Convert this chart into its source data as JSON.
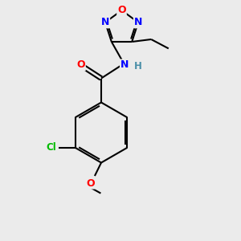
{
  "background_color": "#ebebeb",
  "bond_color": "#000000",
  "atom_colors": {
    "O": "#ff0000",
    "N": "#0000ff",
    "Cl": "#00bb00",
    "C": "#000000",
    "H": "#4a8fa8"
  },
  "figsize": [
    3.0,
    3.0
  ],
  "dpi": 100
}
